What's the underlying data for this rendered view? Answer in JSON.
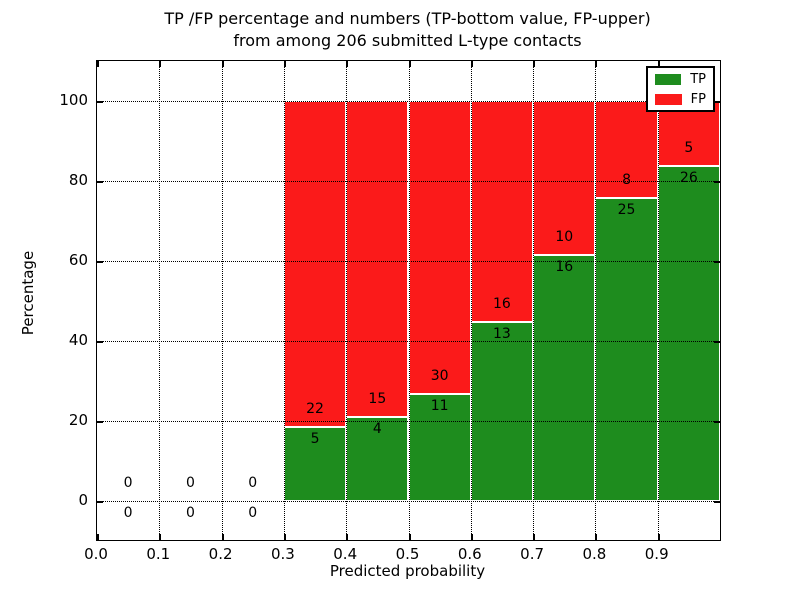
{
  "figure": {
    "background": "#ffffff",
    "text_color": "#000000",
    "grid_color": "#000000"
  },
  "chart_data": {
    "type": "bar",
    "stacked": true,
    "normalized_to_percent": true,
    "title": "TP /FP percentage and numbers (TP-bottom value, FP-upper)",
    "subtitle": "from among 206 submitted L-type contacts",
    "xlabel": "Predicted probability",
    "ylabel": "Percentage",
    "xlim": [
      0.0,
      1.0
    ],
    "ylim": [
      -10,
      110
    ],
    "bin_width": 0.1,
    "bin_starts": [
      0.0,
      0.1,
      0.2,
      0.3,
      0.4,
      0.5,
      0.6,
      0.7,
      0.8,
      0.9
    ],
    "series": [
      {
        "name": "TP",
        "color": "#1e8c1e",
        "counts": [
          0,
          0,
          0,
          5,
          4,
          11,
          13,
          16,
          25,
          26
        ]
      },
      {
        "name": "FP",
        "color": "#fb1a1a",
        "counts": [
          0,
          0,
          0,
          22,
          15,
          30,
          16,
          10,
          8,
          5
        ]
      }
    ],
    "total_contacts": 206,
    "bar_total_percent": 100,
    "xtick_labels": [
      "0.0",
      "0.1",
      "0.2",
      "0.3",
      "0.4",
      "0.5",
      "0.6",
      "0.7",
      "0.8",
      "0.9"
    ],
    "ytick_values": [
      0,
      20,
      40,
      60,
      80,
      100
    ],
    "ytick_labels": [
      "0",
      "20",
      "40",
      "60",
      "80",
      "100"
    ],
    "grid": true,
    "grid_on_top": true,
    "legend": {
      "position": "upper right"
    }
  }
}
